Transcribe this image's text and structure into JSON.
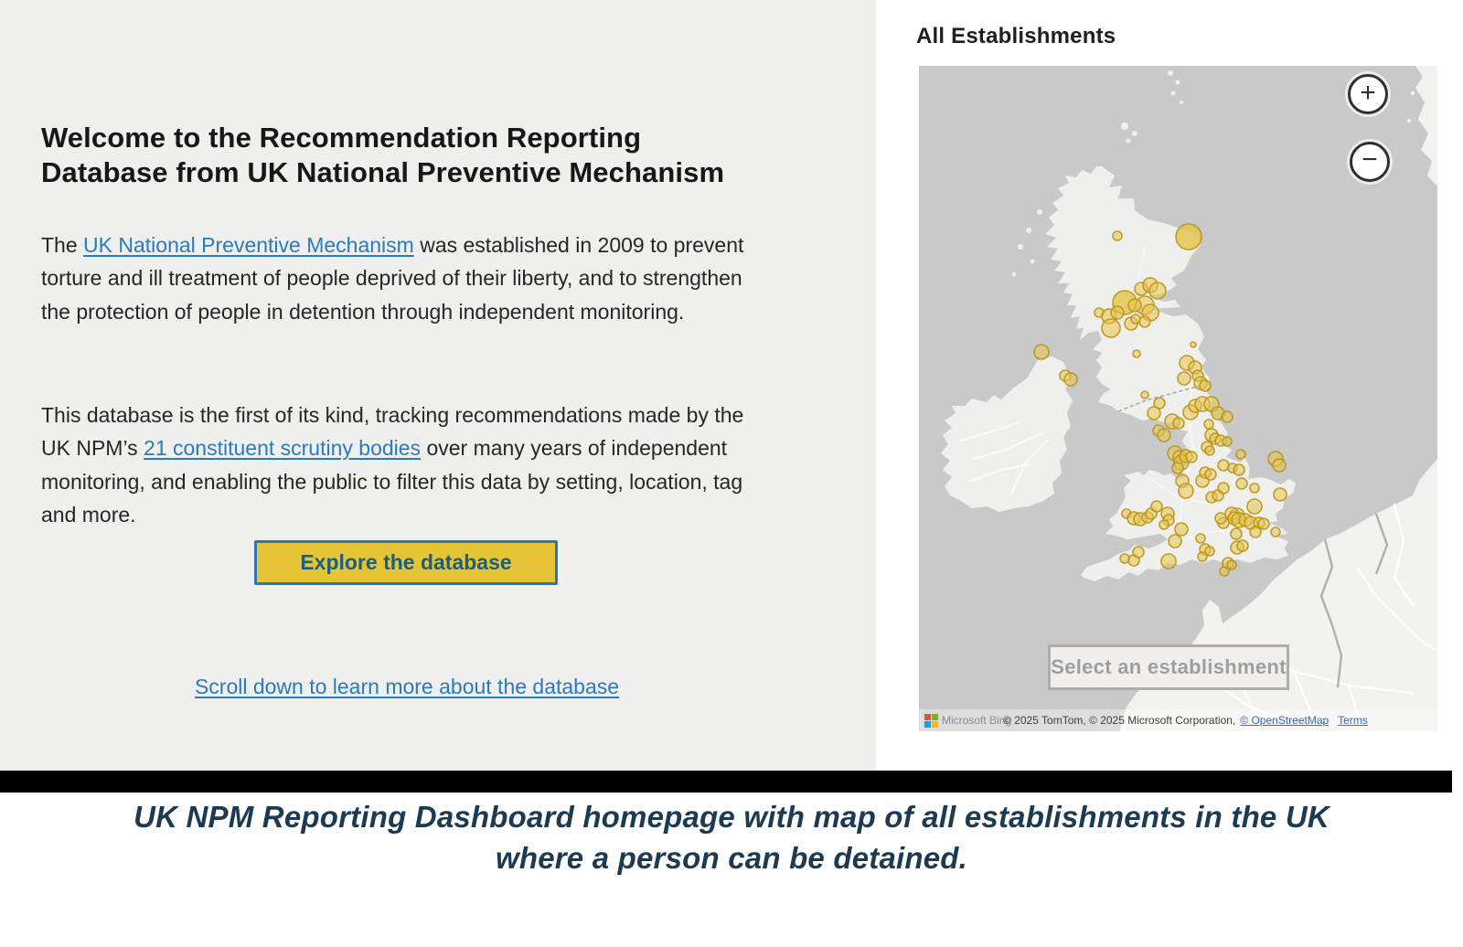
{
  "left_panel": {
    "heading": "Welcome to the Recommendation Reporting Database from UK National Preventive Mechanism",
    "para1_prefix": "The ",
    "para1_link": "UK National Preventive Mechanism",
    "para1_suffix": " was established in 2009 to prevent torture and ill treatment of people deprived of their liberty, and to strengthen the protection of people in detention through independent monitoring.",
    "para2_prefix": "This database is the first of its kind, tracking recommendations made by the UK NPM’s ",
    "para2_link": "21 constituent scrutiny bodies",
    "para2_suffix": " over many years of independent monitoring, and enabling the public to filter this data by setting, location, tag and more.",
    "explore_button": "Explore the database",
    "scroll_link": "Scroll down to learn more about the database"
  },
  "map_section": {
    "title": "All Establishments",
    "zoom_in_label": "+",
    "zoom_out_label": "−",
    "select_box_label": "Select an establishment",
    "attribution": {
      "logo": "microsoft-logo",
      "bing": "Microsoft Bing",
      "copyright": "© 2025 TomTom, © 2025 Microsoft Corporation,",
      "osm_link": "© OpenStreetMap",
      "terms_link": "Terms"
    },
    "bubbles": [
      [
        217,
        186,
        5
      ],
      [
        295,
        187,
        14
      ],
      [
        243,
        244,
        7
      ],
      [
        253,
        240,
        8
      ],
      [
        261,
        246,
        9
      ],
      [
        225,
        259,
        13
      ],
      [
        247,
        262,
        10
      ],
      [
        236,
        262,
        7
      ],
      [
        253,
        270,
        9
      ],
      [
        197,
        270,
        5
      ],
      [
        208,
        274,
        8
      ],
      [
        217,
        270,
        7
      ],
      [
        232,
        282,
        7
      ],
      [
        210,
        287,
        10
      ],
      [
        237,
        277,
        5
      ],
      [
        247,
        280,
        6
      ],
      [
        300,
        305,
        3
      ],
      [
        238,
        315,
        4
      ],
      [
        293,
        325,
        8
      ],
      [
        302,
        330,
        7
      ],
      [
        305,
        339,
        6
      ],
      [
        290,
        342,
        7
      ],
      [
        308,
        347,
        7
      ],
      [
        313,
        350,
        6
      ],
      [
        134,
        313,
        8
      ],
      [
        160,
        339,
        6
      ],
      [
        166,
        343,
        7
      ],
      [
        247,
        360,
        4
      ],
      [
        263,
        369,
        6
      ],
      [
        257,
        380,
        7
      ],
      [
        262,
        399,
        6
      ],
      [
        268,
        404,
        7
      ],
      [
        277,
        389,
        8
      ],
      [
        284,
        391,
        6
      ],
      [
        297,
        379,
        8
      ],
      [
        302,
        372,
        7
      ],
      [
        310,
        370,
        8
      ],
      [
        320,
        370,
        8
      ],
      [
        327,
        380,
        7
      ],
      [
        337,
        384,
        6
      ],
      [
        317,
        392,
        5
      ],
      [
        320,
        404,
        7
      ],
      [
        324,
        408,
        6
      ],
      [
        330,
        410,
        6
      ],
      [
        337,
        411,
        5
      ],
      [
        315,
        417,
        6
      ],
      [
        318,
        421,
        5
      ],
      [
        280,
        424,
        8
      ],
      [
        285,
        428,
        7
      ],
      [
        287,
        434,
        8
      ],
      [
        283,
        440,
        6
      ],
      [
        292,
        427,
        7
      ],
      [
        298,
        428,
        6
      ],
      [
        288,
        454,
        7
      ],
      [
        292,
        465,
        8
      ],
      [
        310,
        454,
        7
      ],
      [
        313,
        445,
        6
      ],
      [
        319,
        447,
        6
      ],
      [
        333,
        437,
        6
      ],
      [
        343,
        440,
        5
      ],
      [
        350,
        442,
        6
      ],
      [
        352,
        425,
        5
      ],
      [
        390,
        430,
        8
      ],
      [
        394,
        437,
        7
      ],
      [
        395,
        469,
        7
      ],
      [
        367,
        462,
        5
      ],
      [
        353,
        457,
        6
      ],
      [
        320,
        472,
        6
      ],
      [
        327,
        470,
        6
      ],
      [
        333,
        462,
        6
      ],
      [
        367,
        482,
        8
      ],
      [
        348,
        492,
        8
      ],
      [
        342,
        490,
        7
      ],
      [
        345,
        495,
        7
      ],
      [
        350,
        497,
        8
      ],
      [
        357,
        497,
        7
      ],
      [
        363,
        500,
        7
      ],
      [
        372,
        500,
        6
      ],
      [
        377,
        501,
        6
      ],
      [
        333,
        500,
        6
      ],
      [
        330,
        495,
        6
      ],
      [
        390,
        510,
        5
      ],
      [
        368,
        510,
        6
      ],
      [
        347,
        512,
        6
      ],
      [
        348,
        527,
        7
      ],
      [
        354,
        525,
        6
      ],
      [
        227,
        490,
        5
      ],
      [
        235,
        495,
        7
      ],
      [
        242,
        496,
        7
      ],
      [
        250,
        494,
        6
      ],
      [
        254,
        490,
        6
      ],
      [
        260,
        482,
        6
      ],
      [
        272,
        490,
        7
      ],
      [
        273,
        497,
        6
      ],
      [
        268,
        502,
        5
      ],
      [
        287,
        507,
        7
      ],
      [
        280,
        520,
        7
      ],
      [
        308,
        517,
        5
      ],
      [
        225,
        539,
        5
      ],
      [
        235,
        541,
        6
      ],
      [
        240,
        532,
        6
      ],
      [
        273,
        542,
        8
      ],
      [
        313,
        529,
        6
      ],
      [
        318,
        531,
        5
      ],
      [
        310,
        537,
        5
      ],
      [
        334,
        553,
        5
      ],
      [
        338,
        544,
        6
      ],
      [
        342,
        546,
        5
      ]
    ]
  },
  "caption": "UK NPM Reporting Dashboard homepage with map of all establishments in the UK where a person can be detained.",
  "colors": {
    "left_panel_bg": "#efefee",
    "link_blue": "#2b7abc",
    "button_bg": "#e5c435",
    "button_border": "#2d73b6",
    "button_text": "#1a5f7e",
    "caption_navy": "#1d3a53",
    "divider_bar": "#000000",
    "map_sea": "#c9c9c9",
    "map_land": "#efefed",
    "bubble_fill": "#e6c54b",
    "bubble_stroke": "#b89317",
    "select_box_text": "#9e9e9e",
    "attribution_link": "#3a66c0",
    "ms_logo": [
      "#f25022",
      "#7fba00",
      "#00a4ef",
      "#ffb900"
    ]
  }
}
